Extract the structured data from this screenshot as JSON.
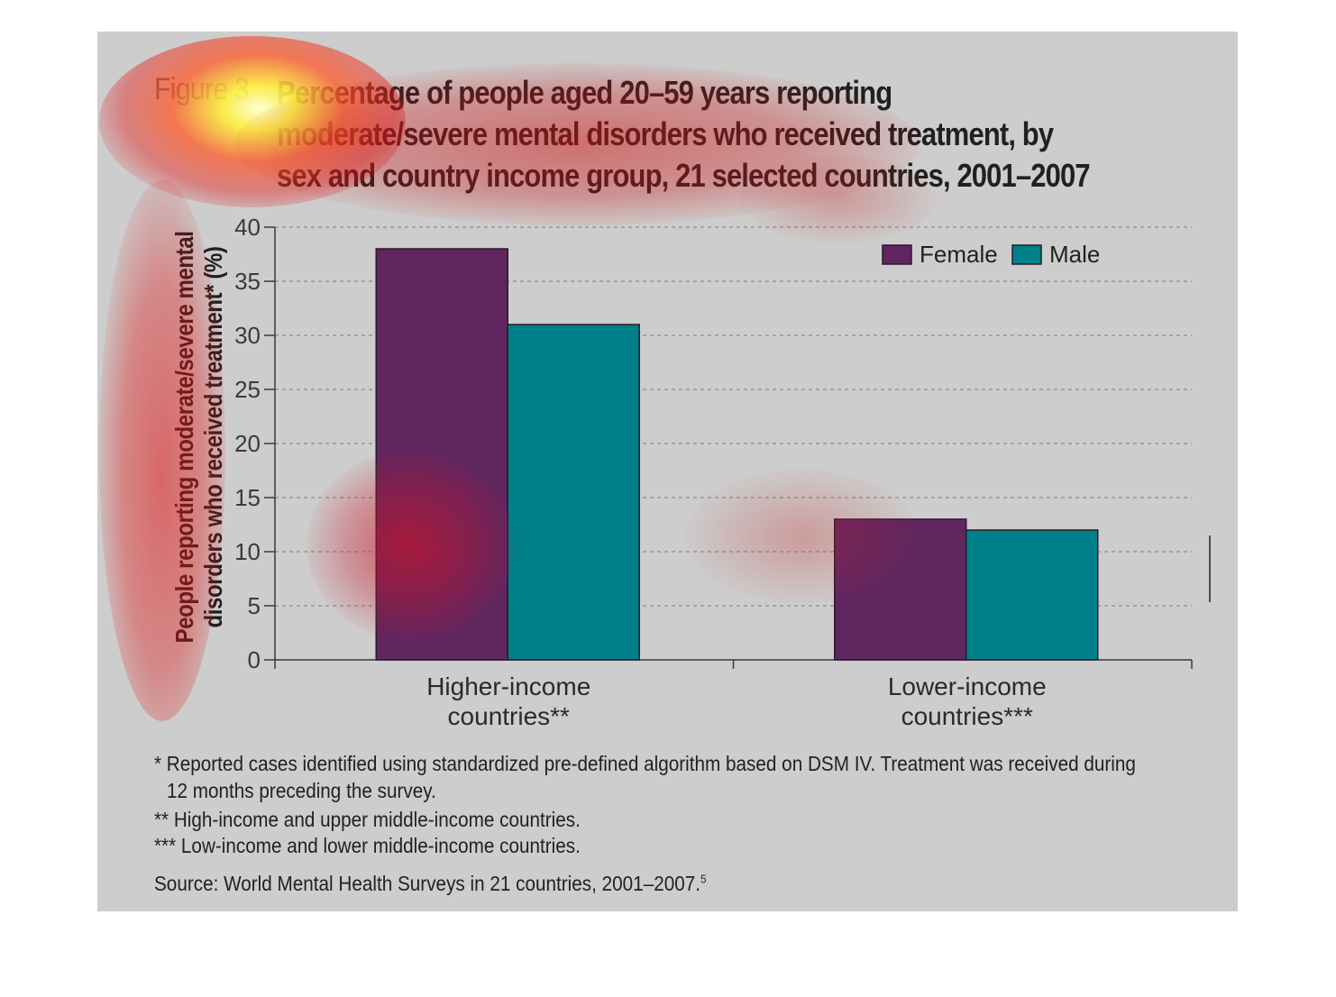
{
  "figure_label": "Figure 3",
  "chart_data": {
    "type": "bar",
    "title": "Percentage of people aged 20–59 years reporting moderate/severe mental disorders who received treatment, by sex and country income group, 21 selected countries, 2001–2007",
    "title_lines": [
      "Percentage of people aged 20–59 years reporting",
      "moderate/severe mental disorders who received treatment, by",
      "sex and country income group, 21 selected countries, 2001–2007"
    ],
    "ylabel": "People reporting moderate/severe mental disorders who received treatment* (%)",
    "ylabel_lines": [
      "People reporting moderate/severe mental",
      "disorders who received treatment* (%)"
    ],
    "xlabel": "",
    "ylim": [
      0,
      40
    ],
    "yticks": [
      "0",
      "5",
      "10",
      "15",
      "20",
      "25",
      "30",
      "35",
      "40"
    ],
    "grid": true,
    "legend_position": "top-right",
    "categories": [
      [
        "Higher-income",
        "countries**"
      ],
      [
        "Lower-income",
        "countries***"
      ]
    ],
    "series": [
      {
        "name": "Female",
        "color": "#5f2660",
        "values": [
          38,
          13
        ]
      },
      {
        "name": "Male",
        "color": "#00808a",
        "values": [
          31,
          12
        ]
      }
    ]
  },
  "notes": {
    "note1_line1": "* Reported cases identified using standardized pre-defined algorithm based on DSM IV. Treatment was received during",
    "note1_line2": "12 months preceding the survey.",
    "note2": "** High-income and upper middle-income countries.",
    "note3": "*** Low-income and lower middle-income countries.",
    "source": "Source: World Mental Health Surveys in 21 countries, 2001–2007.",
    "source_ref": "5"
  }
}
